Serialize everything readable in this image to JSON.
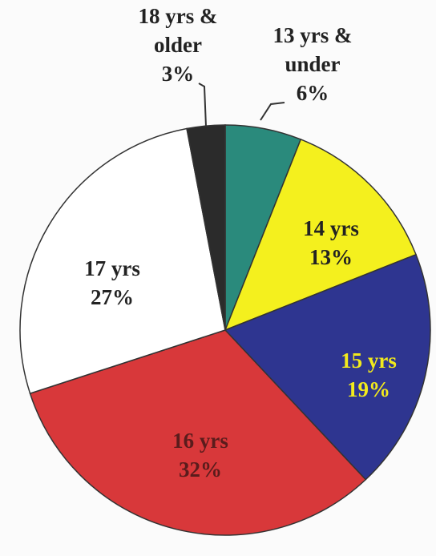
{
  "chart_data": {
    "type": "pie",
    "categories": [
      "13 yrs & under",
      "14 yrs",
      "15 yrs",
      "16 yrs",
      "17 yrs",
      "18 yrs & older"
    ],
    "values": [
      6,
      13,
      19,
      32,
      27,
      3
    ],
    "value_labels": [
      "6%",
      "13%",
      "19%",
      "32%",
      "27%",
      "3%"
    ],
    "colors": [
      "#2a8a7c",
      "#f4f01e",
      "#2e3590",
      "#d8383a",
      "#ffffff",
      "#2b2b2b"
    ],
    "label_colors": [
      "#222222",
      "#222222",
      "#f2ea1c",
      "#5a1c1c",
      "#222222",
      "#222222"
    ]
  }
}
